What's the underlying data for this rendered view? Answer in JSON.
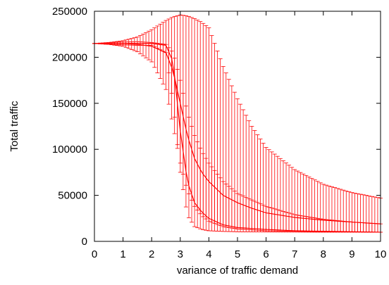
{
  "chart_data": {
    "type": "line",
    "title": "",
    "xlabel": "variance of traffic demand",
    "ylabel": "Total traffic",
    "xlim": [
      0,
      10
    ],
    "ylim": [
      0,
      250000
    ],
    "x_ticks": [
      0,
      1,
      2,
      3,
      4,
      5,
      6,
      7,
      8,
      9,
      10
    ],
    "y_ticks": [
      0,
      50000,
      100000,
      150000,
      200000,
      250000
    ],
    "x_tick_labels": [
      "0",
      "1",
      "2",
      "3",
      "4",
      "5",
      "6",
      "7",
      "8",
      "9",
      "10"
    ],
    "y_tick_labels": [
      "0",
      "50000",
      "100000",
      "150000",
      "200000",
      "250000"
    ],
    "grid": false,
    "legend": "none",
    "series_color": "#ff0000",
    "series": [
      {
        "x": [
          0,
          0.5,
          1.0,
          1.5,
          2.0,
          2.5,
          2.75,
          3.0,
          3.25,
          3.5,
          3.75,
          4.0,
          4.5,
          5.0,
          5.5,
          6.0,
          7.0,
          8.0,
          9.0,
          10.0
        ],
        "y": [
          215000,
          215000,
          215000,
          214000,
          212000,
          205000,
          185000,
          150000,
          115000,
          90000,
          75000,
          65000,
          50000,
          42000,
          36000,
          31000,
          26000,
          23000,
          21000,
          19000
        ],
        "upper": [
          215000,
          216000,
          218000,
          222000,
          230000,
          240000,
          244000,
          246000,
          245000,
          242000,
          238000,
          232000,
          190000,
          155000,
          125000,
          102000,
          78000,
          62000,
          53000,
          47000
        ],
        "lower": [
          215000,
          214000,
          212000,
          206000,
          195000,
          165000,
          125000,
          85000,
          55000,
          38000,
          28000,
          22000,
          16000,
          13500,
          12500,
          11500,
          11000,
          10500,
          10200,
          10000
        ]
      },
      {
        "x": [
          0,
          0.5,
          1.0,
          1.5,
          2.0,
          2.5,
          2.75,
          3.0,
          3.25,
          3.5,
          3.75,
          4.0,
          4.5,
          5.0,
          6.0,
          7.0,
          8.0,
          9.0,
          10.0
        ],
        "y": [
          215000,
          215000,
          215000,
          215000,
          215000,
          213000,
          195000,
          120000,
          65000,
          42000,
          32000,
          25000,
          18000,
          15000,
          13000,
          11500,
          11000,
          10500,
          10000
        ],
        "upper": [
          215000,
          216000,
          216500,
          217000,
          216000,
          214000,
          205000,
          175000,
          140000,
          115000,
          98000,
          85000,
          65000,
          52000,
          38000,
          29000,
          24000,
          21000,
          19000
        ],
        "lower": [
          215000,
          214000,
          213500,
          213000,
          213000,
          205000,
          150000,
          75000,
          28000,
          16000,
          13000,
          11500,
          10800,
          10400,
          10200,
          10100,
          10000,
          10000,
          10000
        ]
      }
    ]
  }
}
